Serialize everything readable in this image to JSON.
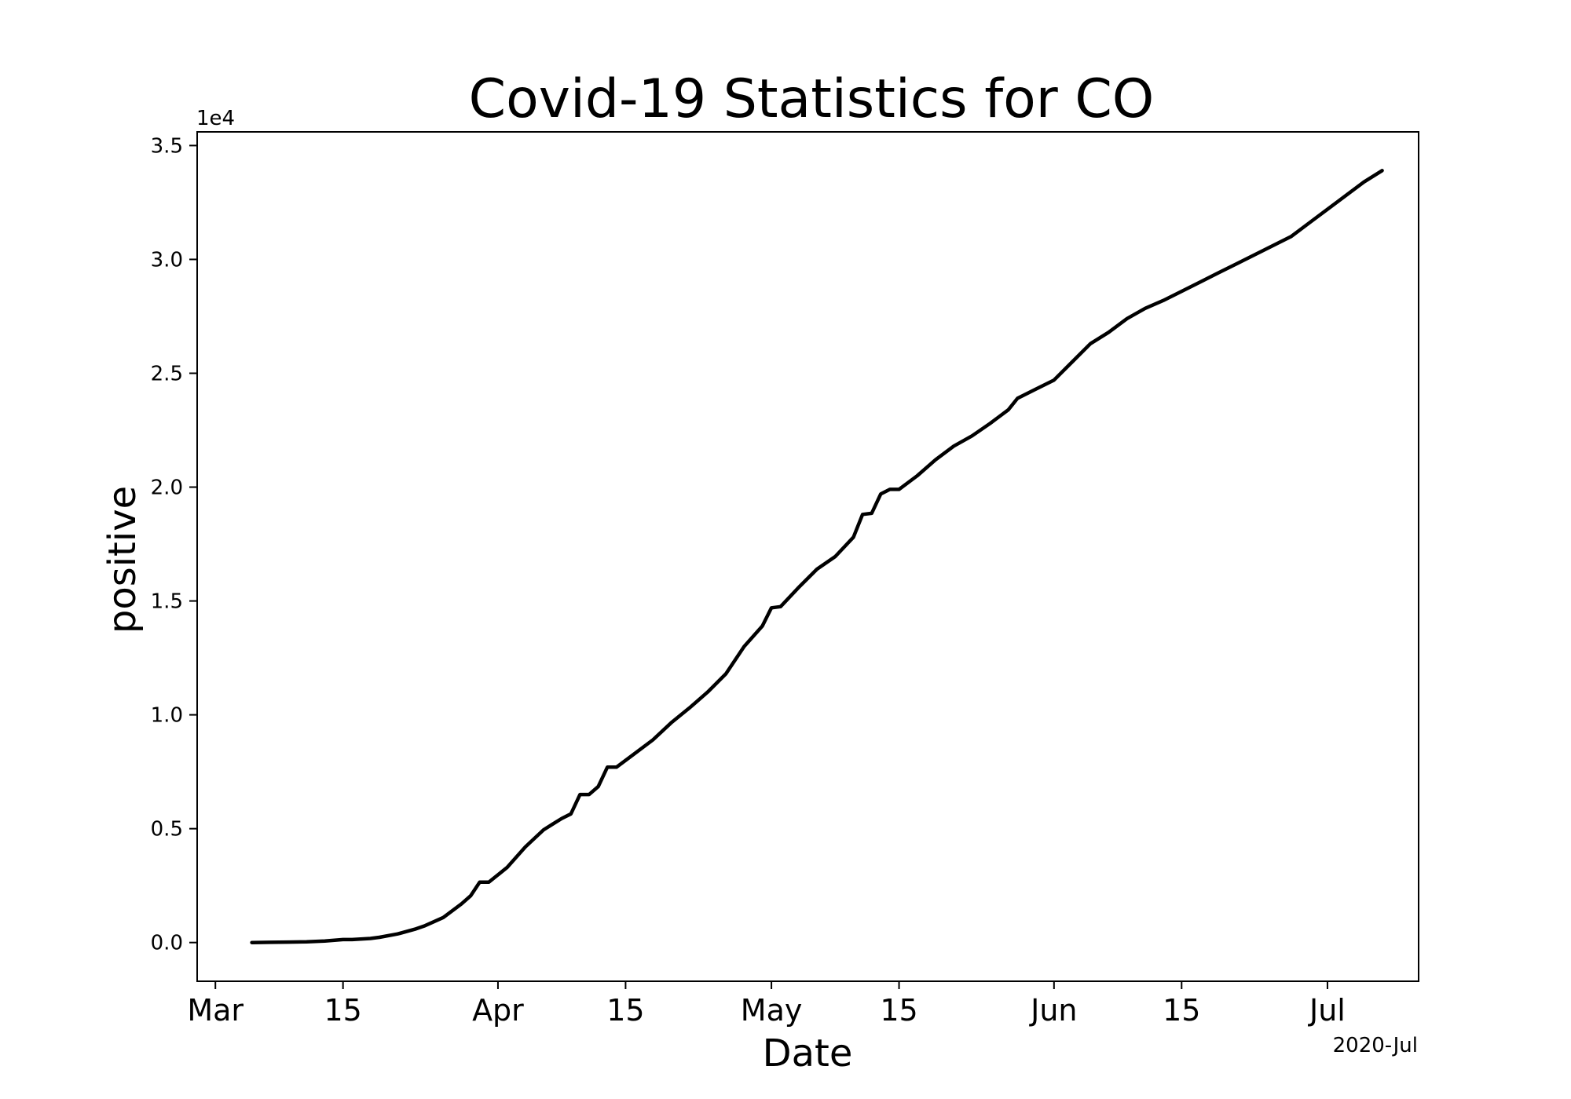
{
  "chart_data": {
    "type": "line",
    "title": "Covid-19 Statistics for CO",
    "xlabel": "Date",
    "ylabel": "positive",
    "y_offset_label": "1e4",
    "x_offset_label": "2020-Jul",
    "line_color": "#000000",
    "grid": false,
    "legend": "none",
    "x_range": [
      "2020-02-28",
      "2020-07-11"
    ],
    "ylim": [
      -1700,
      35600
    ],
    "x_ticks": [
      {
        "date": "2020-03-01",
        "label": "Mar"
      },
      {
        "date": "2020-03-15",
        "label": "15"
      },
      {
        "date": "2020-04-01",
        "label": "Apr"
      },
      {
        "date": "2020-04-15",
        "label": "15"
      },
      {
        "date": "2020-05-01",
        "label": "May"
      },
      {
        "date": "2020-05-15",
        "label": "15"
      },
      {
        "date": "2020-06-01",
        "label": "Jun"
      },
      {
        "date": "2020-06-15",
        "label": "15"
      },
      {
        "date": "2020-07-01",
        "label": "Jul"
      }
    ],
    "y_ticks": [
      {
        "value": 0,
        "label": "0.0"
      },
      {
        "value": 5000,
        "label": "0.5"
      },
      {
        "value": 10000,
        "label": "1.0"
      },
      {
        "value": 15000,
        "label": "1.5"
      },
      {
        "value": 20000,
        "label": "2.0"
      },
      {
        "value": 25000,
        "label": "2.5"
      },
      {
        "value": 30000,
        "label": "3.0"
      },
      {
        "value": 35000,
        "label": "3.5"
      }
    ],
    "series": [
      {
        "points": [
          [
            "2020-03-05",
            0
          ],
          [
            "2020-03-07",
            10
          ],
          [
            "2020-03-09",
            20
          ],
          [
            "2020-03-11",
            30
          ],
          [
            "2020-03-13",
            70
          ],
          [
            "2020-03-15",
            130
          ],
          [
            "2020-03-16",
            130
          ],
          [
            "2020-03-18",
            180
          ],
          [
            "2020-03-19",
            230
          ],
          [
            "2020-03-21",
            380
          ],
          [
            "2020-03-23",
            600
          ],
          [
            "2020-03-24",
            740
          ],
          [
            "2020-03-26",
            1100
          ],
          [
            "2020-03-28",
            1700
          ],
          [
            "2020-03-29",
            2050
          ],
          [
            "2020-03-30",
            2650
          ],
          [
            "2020-03-31",
            2650
          ],
          [
            "2020-04-02",
            3300
          ],
          [
            "2020-04-04",
            4200
          ],
          [
            "2020-04-06",
            4950
          ],
          [
            "2020-04-07",
            5200
          ],
          [
            "2020-04-08",
            5450
          ],
          [
            "2020-04-09",
            5650
          ],
          [
            "2020-04-10",
            6500
          ],
          [
            "2020-04-11",
            6500
          ],
          [
            "2020-04-12",
            6850
          ],
          [
            "2020-04-13",
            7700
          ],
          [
            "2020-04-14",
            7700
          ],
          [
            "2020-04-16",
            8300
          ],
          [
            "2020-04-18",
            8900
          ],
          [
            "2020-04-20",
            9650
          ],
          [
            "2020-04-22",
            10300
          ],
          [
            "2020-04-24",
            11000
          ],
          [
            "2020-04-26",
            11800
          ],
          [
            "2020-04-27",
            12400
          ],
          [
            "2020-04-28",
            13000
          ],
          [
            "2020-04-30",
            13900
          ],
          [
            "2020-05-01",
            14700
          ],
          [
            "2020-05-02",
            14750
          ],
          [
            "2020-05-04",
            15600
          ],
          [
            "2020-05-06",
            16400
          ],
          [
            "2020-05-08",
            16950
          ],
          [
            "2020-05-10",
            17800
          ],
          [
            "2020-05-11",
            18800
          ],
          [
            "2020-05-12",
            18850
          ],
          [
            "2020-05-13",
            19700
          ],
          [
            "2020-05-14",
            19900
          ],
          [
            "2020-05-15",
            19900
          ],
          [
            "2020-05-17",
            20500
          ],
          [
            "2020-05-19",
            21200
          ],
          [
            "2020-05-21",
            21800
          ],
          [
            "2020-05-23",
            22250
          ],
          [
            "2020-05-25",
            22800
          ],
          [
            "2020-05-27",
            23400
          ],
          [
            "2020-05-28",
            23900
          ],
          [
            "2020-05-30",
            24300
          ],
          [
            "2020-06-01",
            24700
          ],
          [
            "2020-06-03",
            25500
          ],
          [
            "2020-06-05",
            26300
          ],
          [
            "2020-06-07",
            26800
          ],
          [
            "2020-06-09",
            27400
          ],
          [
            "2020-06-11",
            27850
          ],
          [
            "2020-06-13",
            28200
          ],
          [
            "2020-06-15",
            28600
          ],
          [
            "2020-06-17",
            29000
          ],
          [
            "2020-06-19",
            29400
          ],
          [
            "2020-06-21",
            29800
          ],
          [
            "2020-06-23",
            30200
          ],
          [
            "2020-06-25",
            30600
          ],
          [
            "2020-06-27",
            31000
          ],
          [
            "2020-06-29",
            31600
          ],
          [
            "2020-07-01",
            32200
          ],
          [
            "2020-07-03",
            32800
          ],
          [
            "2020-07-05",
            33400
          ],
          [
            "2020-07-07",
            33900
          ]
        ]
      }
    ]
  }
}
